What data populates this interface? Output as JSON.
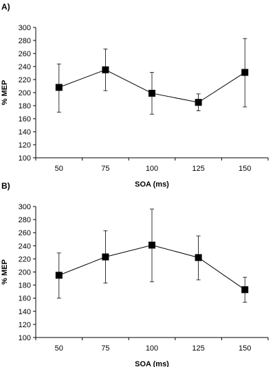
{
  "chart_data": [
    {
      "type": "line",
      "panel_label": "A)",
      "categories": [
        "50",
        "75",
        "100",
        "125",
        "150"
      ],
      "values": [
        208,
        235,
        199,
        185,
        231
      ],
      "error_low": [
        170,
        203,
        167,
        172,
        178
      ],
      "error_high": [
        244,
        267,
        231,
        198,
        283
      ],
      "xlabel": "SOA (ms)",
      "ylabel": "% MEP",
      "ylim": [
        100,
        300
      ],
      "yticks": [
        100,
        120,
        140,
        160,
        180,
        200,
        220,
        240,
        260,
        280,
        300
      ],
      "marker": "square",
      "grid": false
    },
    {
      "type": "line",
      "panel_label": "B)",
      "categories": [
        "50",
        "75",
        "100",
        "125",
        "150"
      ],
      "values": [
        195,
        223,
        241,
        222,
        173
      ],
      "error_low": [
        160,
        183,
        185,
        188,
        154
      ],
      "error_high": [
        229,
        263,
        296,
        255,
        192
      ],
      "xlabel": "SOA (ms)",
      "ylabel": "% MEP",
      "ylim": [
        100,
        300
      ],
      "yticks": [
        100,
        120,
        140,
        160,
        180,
        200,
        220,
        240,
        260,
        280,
        300
      ],
      "marker": "square",
      "grid": false
    }
  ]
}
